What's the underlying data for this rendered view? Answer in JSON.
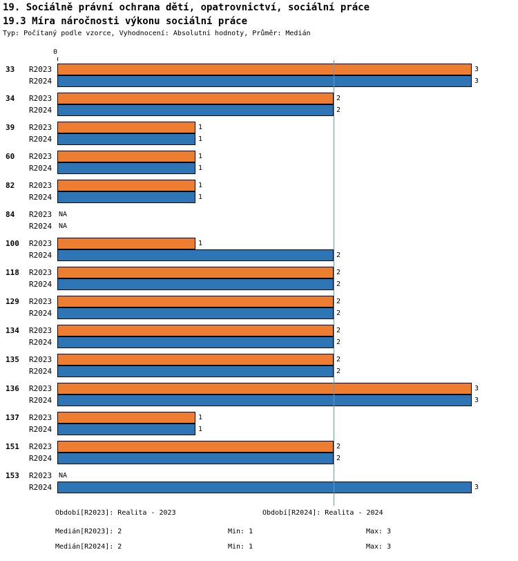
{
  "header": {
    "title": "19. Sociálně právní ochrana dětí, opatrovnictví, sociální práce",
    "subtitle": "19.3 Míra náročnosti výkonu sociální práce",
    "meta": "Typ: Počítaný podle vzorce, Vyhodnocení: Absolutní hodnoty, Průměr: Medián"
  },
  "axis": {
    "zero_label": "0"
  },
  "colors": {
    "r2023": "#ED7D31",
    "r2024": "#2E75B6",
    "median_line": "#5B9BD5",
    "bar_border": "#000000"
  },
  "chart_data": {
    "type": "bar",
    "orientation": "horizontal",
    "series_labels": [
      "R2023",
      "R2024"
    ],
    "xlim": [
      0,
      3
    ],
    "reference_line_x": 2,
    "groups": [
      {
        "label": "33",
        "values": [
          3,
          3
        ]
      },
      {
        "label": "34",
        "values": [
          2,
          2
        ]
      },
      {
        "label": "39",
        "values": [
          1,
          1
        ]
      },
      {
        "label": "60",
        "values": [
          1,
          1
        ]
      },
      {
        "label": "82",
        "values": [
          1,
          1
        ]
      },
      {
        "label": "84",
        "values": [
          "NA",
          "NA"
        ]
      },
      {
        "label": "100",
        "values": [
          1,
          2
        ]
      },
      {
        "label": "118",
        "values": [
          2,
          2
        ]
      },
      {
        "label": "129",
        "values": [
          2,
          2
        ]
      },
      {
        "label": "134",
        "values": [
          2,
          2
        ]
      },
      {
        "label": "135",
        "values": [
          2,
          2
        ]
      },
      {
        "label": "136",
        "values": [
          3,
          3
        ]
      },
      {
        "label": "137",
        "values": [
          1,
          1
        ]
      },
      {
        "label": "151",
        "values": [
          2,
          2
        ]
      },
      {
        "label": "153",
        "values": [
          "NA",
          3
        ]
      }
    ],
    "stats": {
      "median_R2023": 2,
      "median_R2024": 2,
      "min": 1,
      "max": 3
    }
  },
  "footer": {
    "period_r2023": "Období[R2023]: Realita - 2023",
    "period_r2024": "Období[R2024]: Realita - 2024",
    "median_r2023": "Medián[R2023]: 2",
    "min_r2023": "Min: 1",
    "max_r2023": "Max: 3",
    "median_r2024": "Medián[R2024]: 2",
    "min_r2024": "Min: 1",
    "max_r2024": "Max: 3"
  }
}
